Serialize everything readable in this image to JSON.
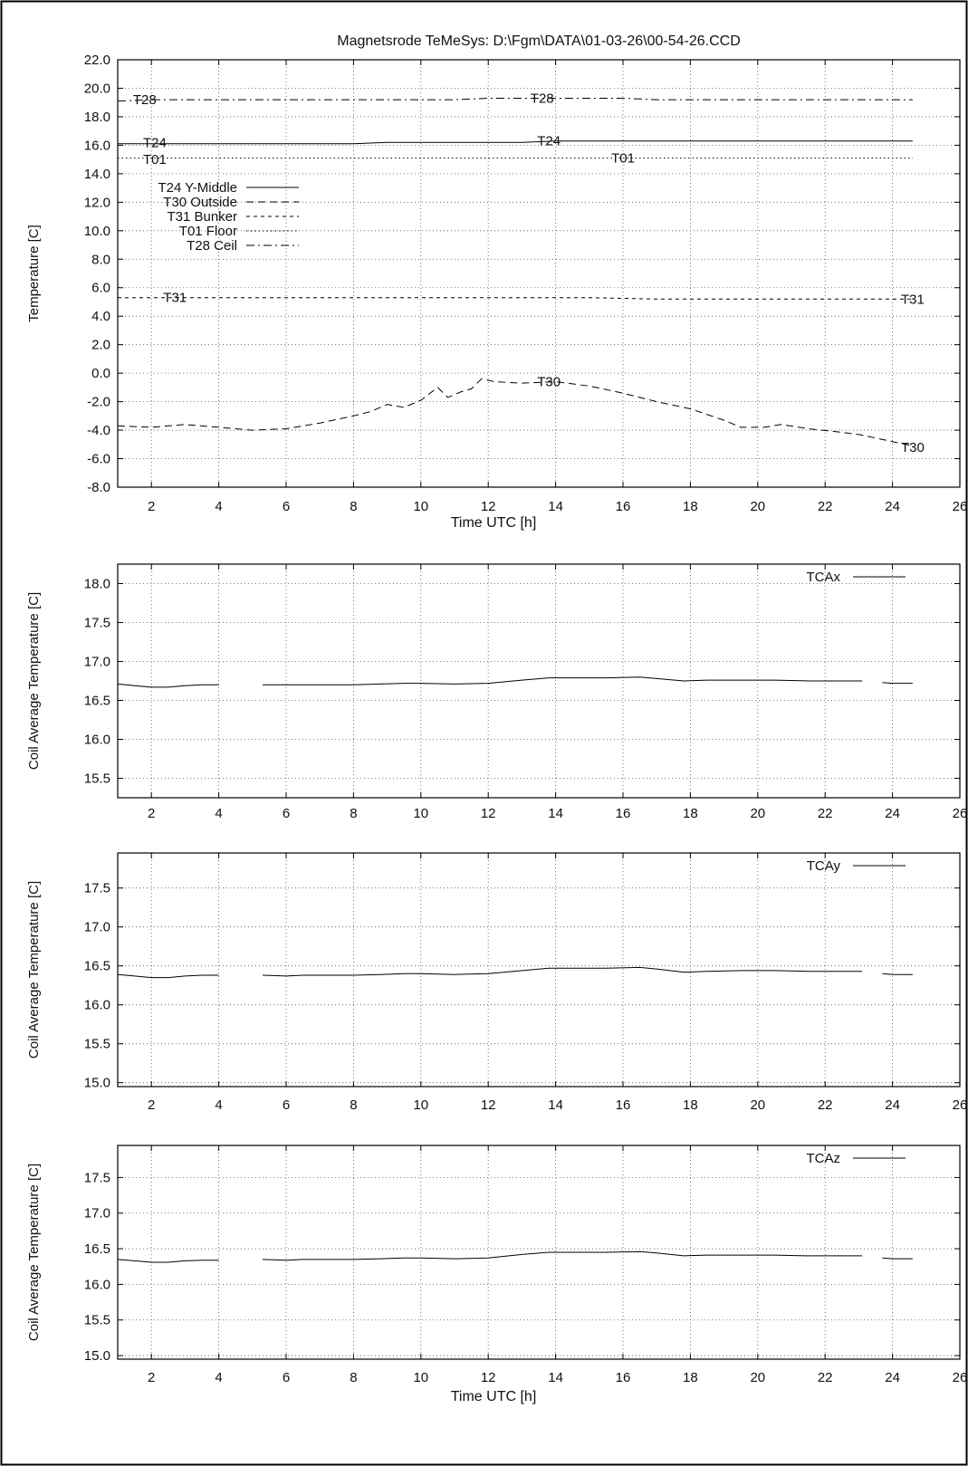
{
  "title": "Magnetsrode TeMeSys: D:\\Fgm\\DATA\\01-03-26\\00-54-26.CCD",
  "chart_data": [
    {
      "type": "line",
      "title": "Magnetsrode TeMeSys: D:\\Fgm\\DATA\\01-03-26\\00-54-26.CCD",
      "xlabel": "Time UTC [h]",
      "ylabel": "Temperature [C]",
      "xlim": [
        1,
        26
      ],
      "ylim": [
        -8,
        22
      ],
      "xticks": [
        2,
        4,
        6,
        8,
        10,
        12,
        14,
        16,
        18,
        20,
        22,
        24,
        26
      ],
      "yticks": [
        -8,
        -6,
        -4,
        -2,
        0,
        2,
        4,
        6,
        8,
        10,
        12,
        14,
        16,
        18,
        20,
        22
      ],
      "ytick_labels": [
        "-8.0",
        "-6.0",
        "-4.0",
        "-2.0",
        "0.0",
        "2.0",
        "4.0",
        "6.0",
        "8.0",
        "10.0",
        "12.0",
        "14.0",
        "16.0",
        "18.0",
        "20.0",
        "22.0"
      ],
      "grid": true,
      "legend": "upper-left",
      "series": [
        {
          "name": "T24 Y-Middle",
          "dash": "solid",
          "x": [
            1,
            2,
            3,
            4,
            5,
            6,
            7,
            8,
            9,
            10,
            11,
            12,
            13,
            14,
            15,
            16,
            17,
            18,
            19,
            20,
            21,
            22,
            23,
            24,
            24.6
          ],
          "y": [
            16.1,
            16.1,
            16.1,
            16.1,
            16.1,
            16.1,
            16.1,
            16.1,
            16.2,
            16.2,
            16.2,
            16.2,
            16.2,
            16.3,
            16.3,
            16.3,
            16.3,
            16.3,
            16.3,
            16.3,
            16.3,
            16.3,
            16.3,
            16.3,
            16.3
          ]
        },
        {
          "name": "T30 Outside",
          "dash": "long",
          "x": [
            1,
            2,
            3,
            4,
            5,
            6,
            7,
            8,
            8.5,
            9,
            9.5,
            10,
            10.5,
            10.8,
            11.2,
            11.5,
            11.8,
            12.2,
            13,
            14,
            15,
            16,
            17,
            18,
            19,
            19.5,
            20.2,
            20.7,
            21.5,
            22.3,
            23,
            24,
            24.6
          ],
          "y": [
            -3.7,
            -3.8,
            -3.6,
            -3.8,
            -4.0,
            -3.9,
            -3.5,
            -3.0,
            -2.7,
            -2.2,
            -2.4,
            -1.9,
            -1.0,
            -1.7,
            -1.3,
            -1.1,
            -0.4,
            -0.6,
            -0.7,
            -0.6,
            -0.9,
            -1.4,
            -2.0,
            -2.5,
            -3.3,
            -3.8,
            -3.8,
            -3.6,
            -3.9,
            -4.1,
            -4.3,
            -4.8,
            -5.1
          ]
        },
        {
          "name": "T31 Bunker",
          "dash": "short",
          "x": [
            1,
            3,
            5,
            7,
            9,
            11,
            13,
            15,
            17,
            19,
            21,
            23,
            24.6
          ],
          "y": [
            5.3,
            5.3,
            5.3,
            5.3,
            5.3,
            5.3,
            5.3,
            5.3,
            5.2,
            5.2,
            5.2,
            5.2,
            5.2
          ]
        },
        {
          "name": "T01 Floor",
          "dash": "dot",
          "x": [
            1,
            3,
            5,
            7,
            9,
            11,
            13,
            15,
            17,
            19,
            21,
            23,
            24.6
          ],
          "y": [
            15.1,
            15.1,
            15.1,
            15.1,
            15.1,
            15.1,
            15.1,
            15.1,
            15.1,
            15.1,
            15.1,
            15.1,
            15.1
          ]
        },
        {
          "name": "T28 Ceil",
          "dash": "dashdot",
          "x": [
            1,
            2,
            3,
            4,
            5,
            6,
            7,
            8,
            9,
            10,
            11,
            12,
            13,
            14,
            15,
            16,
            17,
            18,
            19,
            20,
            21,
            22,
            23,
            24,
            24.6
          ],
          "y": [
            19.1,
            19.2,
            19.2,
            19.2,
            19.2,
            19.2,
            19.2,
            19.2,
            19.2,
            19.2,
            19.2,
            19.3,
            19.3,
            19.3,
            19.3,
            19.3,
            19.2,
            19.2,
            19.2,
            19.2,
            19.2,
            19.2,
            19.2,
            19.2,
            19.2
          ]
        }
      ],
      "annotations": [
        {
          "text": "T28",
          "x": 1.8,
          "y": 19.2
        },
        {
          "text": "T28",
          "x": 13.6,
          "y": 19.3
        },
        {
          "text": "T24",
          "x": 2.1,
          "y": 16.2
        },
        {
          "text": "T24",
          "x": 13.8,
          "y": 16.3
        },
        {
          "text": "T01",
          "x": 2.1,
          "y": 15.0
        },
        {
          "text": "T01",
          "x": 16.0,
          "y": 15.1
        },
        {
          "text": "T31",
          "x": 2.7,
          "y": 5.3
        },
        {
          "text": "T31",
          "x": 24.6,
          "y": 5.2
        },
        {
          "text": "T30",
          "x": 13.8,
          "y": -0.6
        },
        {
          "text": "T30",
          "x": 24.6,
          "y": -5.2
        }
      ]
    },
    {
      "type": "line",
      "xlabel": "",
      "ylabel": "Coil Average Temperature [C]",
      "xlim": [
        1,
        26
      ],
      "ylim": [
        15.25,
        18.25
      ],
      "xticks": [
        2,
        4,
        6,
        8,
        10,
        12,
        14,
        16,
        18,
        20,
        22,
        24,
        26
      ],
      "yticks": [
        15.5,
        16.0,
        16.5,
        17.0,
        17.5,
        18.0
      ],
      "ytick_labels": [
        "15.5",
        "16.0",
        "16.5",
        "17.0",
        "17.5",
        "18.0"
      ],
      "grid": true,
      "legend": "top-right",
      "series": [
        {
          "name": "TCAx",
          "segments": [
            {
              "x": [
                1,
                1.5,
                2,
                2.5,
                3,
                3.5,
                4
              ],
              "y": [
                16.71,
                16.69,
                16.67,
                16.67,
                16.69,
                16.7,
                16.7
              ]
            },
            {
              "x": [
                5.3,
                6,
                6.5,
                7,
                8,
                8.8,
                9.5,
                10,
                11,
                12,
                13,
                13.8,
                14.5,
                15.5,
                16.5,
                17,
                17.8,
                18.5,
                19.5,
                20.5,
                21.5,
                22.5,
                23.1
              ],
              "y": [
                16.7,
                16.7,
                16.7,
                16.7,
                16.7,
                16.71,
                16.72,
                16.72,
                16.71,
                16.72,
                16.76,
                16.79,
                16.79,
                16.79,
                16.8,
                16.78,
                16.75,
                16.76,
                16.76,
                16.76,
                16.75,
                16.75,
                16.75
              ]
            },
            {
              "x": [
                23.7,
                24,
                24.6
              ],
              "y": [
                16.73,
                16.72,
                16.72
              ]
            }
          ]
        }
      ]
    },
    {
      "type": "line",
      "xlabel": "",
      "ylabel": "Coil Average Temperature [C]",
      "xlim": [
        1,
        26
      ],
      "ylim": [
        14.95,
        17.95
      ],
      "xticks": [
        2,
        4,
        6,
        8,
        10,
        12,
        14,
        16,
        18,
        20,
        22,
        24,
        26
      ],
      "yticks": [
        15.0,
        15.5,
        16.0,
        16.5,
        17.0,
        17.5
      ],
      "ytick_labels": [
        "15.0",
        "15.5",
        "16.0",
        "16.5",
        "17.0",
        "17.5"
      ],
      "grid": true,
      "legend": "top-right",
      "series": [
        {
          "name": "TCAy",
          "segments": [
            {
              "x": [
                1,
                1.5,
                2,
                2.5,
                3,
                3.5,
                4
              ],
              "y": [
                16.39,
                16.37,
                16.35,
                16.35,
                16.37,
                16.38,
                16.38
              ]
            },
            {
              "x": [
                5.3,
                6,
                6.5,
                7,
                8,
                8.8,
                9.5,
                10,
                11,
                12,
                13,
                13.8,
                14.5,
                15.5,
                16.5,
                17,
                17.8,
                18.5,
                19.5,
                20.5,
                21.5,
                22.5,
                23.1
              ],
              "y": [
                16.38,
                16.37,
                16.38,
                16.38,
                16.38,
                16.39,
                16.4,
                16.4,
                16.39,
                16.4,
                16.44,
                16.47,
                16.47,
                16.47,
                16.48,
                16.46,
                16.42,
                16.43,
                16.44,
                16.44,
                16.43,
                16.43,
                16.43
              ]
            },
            {
              "x": [
                23.7,
                24,
                24.6
              ],
              "y": [
                16.4,
                16.39,
                16.39
              ]
            }
          ]
        }
      ]
    },
    {
      "type": "line",
      "xlabel": "Time UTC [h]",
      "ylabel": "Coil Average Temperature [C]",
      "xlim": [
        1,
        26
      ],
      "ylim": [
        14.95,
        17.95
      ],
      "xticks": [
        2,
        4,
        6,
        8,
        10,
        12,
        14,
        16,
        18,
        20,
        22,
        24,
        26
      ],
      "yticks": [
        15.0,
        15.5,
        16.0,
        16.5,
        17.0,
        17.5
      ],
      "ytick_labels": [
        "15.0",
        "15.5",
        "16.0",
        "16.5",
        "17.0",
        "17.5"
      ],
      "grid": true,
      "legend": "top-right",
      "series": [
        {
          "name": "TCAz",
          "segments": [
            {
              "x": [
                1,
                1.5,
                2,
                2.5,
                3,
                3.5,
                4
              ],
              "y": [
                16.35,
                16.33,
                16.31,
                16.31,
                16.33,
                16.34,
                16.34
              ]
            },
            {
              "x": [
                5.3,
                6,
                6.5,
                7,
                8,
                8.8,
                9.5,
                10,
                11,
                12,
                13,
                13.8,
                14.5,
                15.5,
                16.5,
                17,
                17.8,
                18.5,
                19.5,
                20.5,
                21.5,
                22.5,
                23.1
              ],
              "y": [
                16.35,
                16.34,
                16.35,
                16.35,
                16.35,
                16.36,
                16.37,
                16.37,
                16.36,
                16.37,
                16.42,
                16.45,
                16.45,
                16.45,
                16.46,
                16.44,
                16.4,
                16.41,
                16.41,
                16.41,
                16.4,
                16.4,
                16.4
              ]
            },
            {
              "x": [
                23.7,
                24,
                24.6
              ],
              "y": [
                16.37,
                16.36,
                16.36
              ]
            }
          ]
        }
      ]
    }
  ]
}
